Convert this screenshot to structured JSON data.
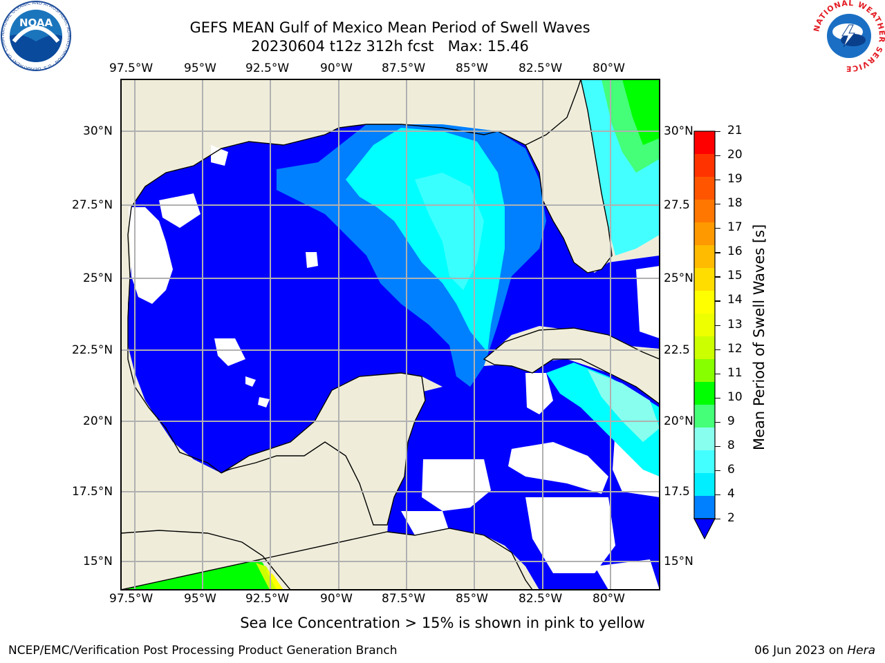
{
  "title": {
    "line1": "GEFS MEAN Gulf of Mexico Mean Period of Swell Waves",
    "line2": "20230604 t12z 312h fcst   Max: 15.46"
  },
  "map": {
    "lon_labels": [
      "97.5°W",
      "95°W",
      "92.5°W",
      "90°W",
      "87.5°W",
      "85°W",
      "82.5°W",
      "80°W"
    ],
    "lat_labels_left": [
      "30°N",
      "27.5°N",
      "25°N",
      "22.5°N",
      "20°N",
      "17.5°N",
      "15°N"
    ],
    "lat_labels_right": [
      "30°N",
      "27.5",
      "25°N",
      "22.5",
      "20°N",
      "17.5",
      "15°N"
    ],
    "colors": {
      "land": "#efedda",
      "ocean_low": "#0000ff",
      "ocean_2_4": "#0080ff",
      "ocean_4_6": "#00ffff",
      "no_data": "#ffffff",
      "grid": "#b0b0b0"
    }
  },
  "colorbar": {
    "title": "Mean Period of Swell Waves [s]",
    "ticks": [
      "21",
      "20",
      "19",
      "18",
      "17",
      "16",
      "15",
      "14",
      "13",
      "12",
      "11",
      "10",
      "9",
      "8",
      "6",
      "4",
      "2"
    ],
    "colors_top_to_bottom": [
      "#ff0000",
      "#ff3300",
      "#ff5500",
      "#ff7700",
      "#ff9900",
      "#ffbb00",
      "#ffdd00",
      "#ffff00",
      "#eeff00",
      "#ccff00",
      "#88ff00",
      "#00ff00",
      "#44ff77",
      "#88ffee",
      "#44ffff",
      "#00eeff",
      "#0080ff"
    ]
  },
  "note": "Sea Ice Concentration > 15% is shown in pink to yellow",
  "footer": {
    "left": "NCEP/EMC/Verification Post Processing Product Generation Branch",
    "right_date": "06 Jun 2023 on ",
    "right_machine": "Hera"
  },
  "logos": {
    "noaa_text": "NOAA",
    "noaa_ring": "NATIONAL OCEANIC AND ATMOSPHERIC ADMINISTRATION · U.S. DEPARTMENT OF COMMERCE",
    "nws_ring": "NATIONAL WEATHER SERVICE"
  }
}
